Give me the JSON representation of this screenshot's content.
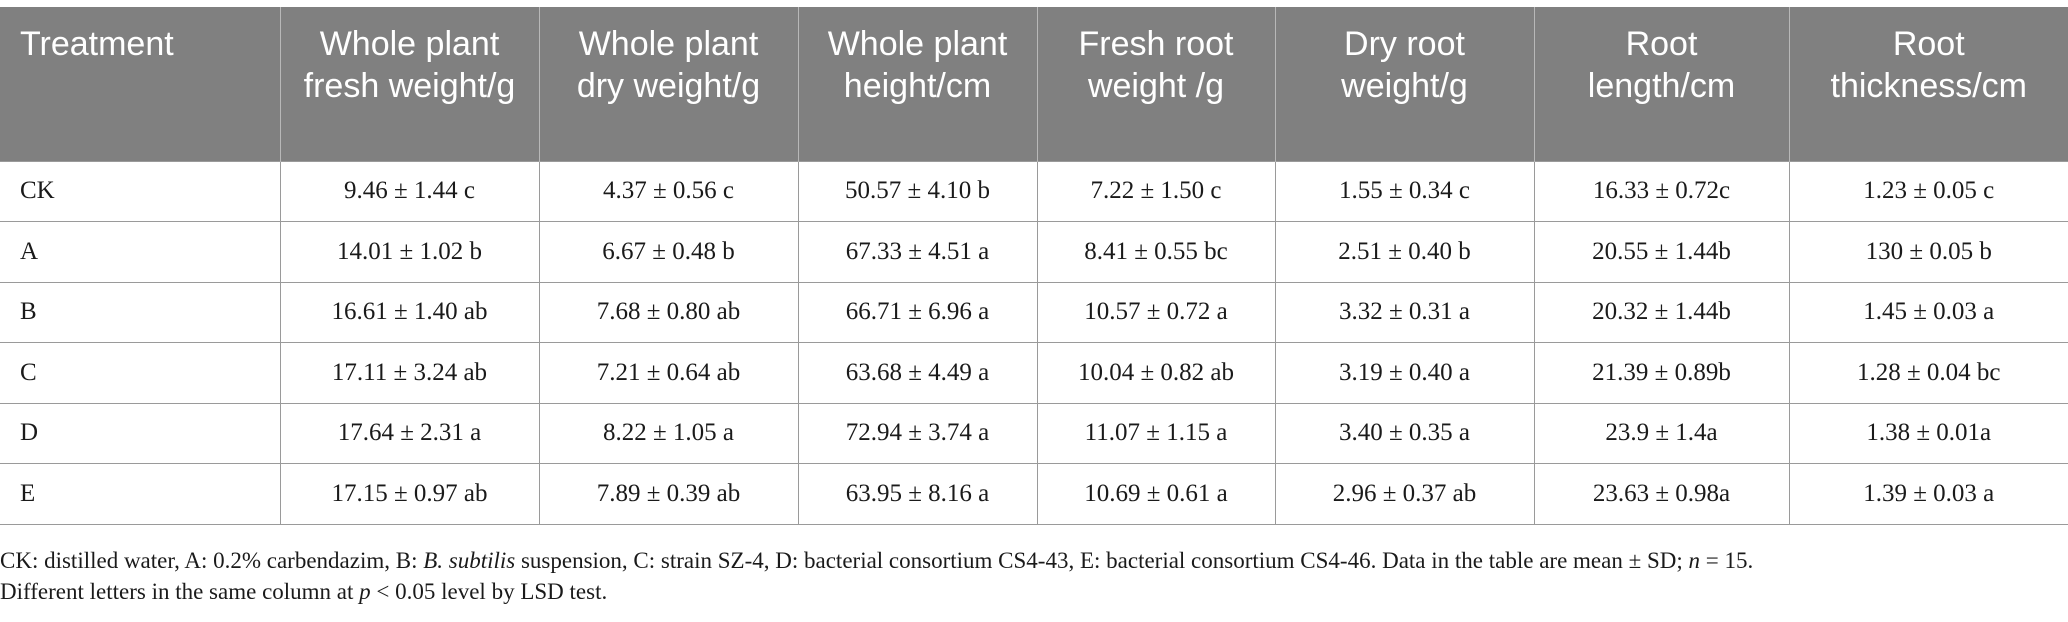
{
  "table": {
    "headers": [
      "Treatment",
      "Whole plant fresh weight/g",
      "Whole plant dry weight/g",
      "Whole plant height/cm",
      "Fresh root weight /g",
      "Dry root weight/g",
      "Root length/cm",
      "Root thickness/cm"
    ],
    "rows": [
      [
        "CK",
        "9.46 ± 1.44 c",
        "4.37 ± 0.56 c",
        "50.57 ± 4.10 b",
        "7.22 ± 1.50 c",
        "1.55 ± 0.34 c",
        "16.33 ± 0.72c",
        "1.23 ± 0.05 c"
      ],
      [
        "A",
        "14.01 ± 1.02 b",
        "6.67 ± 0.48 b",
        "67.33 ± 4.51 a",
        "8.41 ± 0.55 bc",
        "2.51 ± 0.40 b",
        "20.55 ± 1.44b",
        "130 ± 0.05 b"
      ],
      [
        "B",
        "16.61 ± 1.40 ab",
        "7.68 ± 0.80 ab",
        "66.71 ± 6.96 a",
        "10.57 ± 0.72 a",
        "3.32 ± 0.31 a",
        "20.32 ± 1.44b",
        "1.45 ± 0.03 a"
      ],
      [
        "C",
        "17.11 ± 3.24 ab",
        "7.21 ± 0.64 ab",
        "63.68 ± 4.49 a",
        "10.04 ± 0.82 ab",
        "3.19 ± 0.40 a",
        "21.39 ± 0.89b",
        "1.28 ± 0.04 bc"
      ],
      [
        "D",
        "17.64 ± 2.31 a",
        "8.22 ± 1.05 a",
        "72.94 ± 3.74 a",
        "11.07 ± 1.15 a",
        "3.40 ± 0.35 a",
        "23.9 ± 1.4a",
        "1.38 ± 0.01a"
      ],
      [
        "E",
        "17.15 ± 0.97 ab",
        "7.89 ± 0.39 ab",
        "63.95 ± 8.16 a",
        "10.69 ± 0.61 a",
        "2.96 ± 0.37 ab",
        "23.63 ± 0.98a",
        "1.39 ± 0.03 a"
      ]
    ]
  },
  "footnote": {
    "part1": "CK: distilled water, A: 0.2% carbendazim, B: ",
    "species": "B. subtilis",
    "part2": " suspension, C: strain SZ-4, D: bacterial consortium CS4-43, E: bacterial consortium CS4-46. Data in the table are mean ± SD; ",
    "n_symbol": "n",
    "part3": " = 15.",
    "part4": "Different letters in the same column at ",
    "p_symbol": "p",
    "part5": " < 0.05 level by LSD test."
  }
}
